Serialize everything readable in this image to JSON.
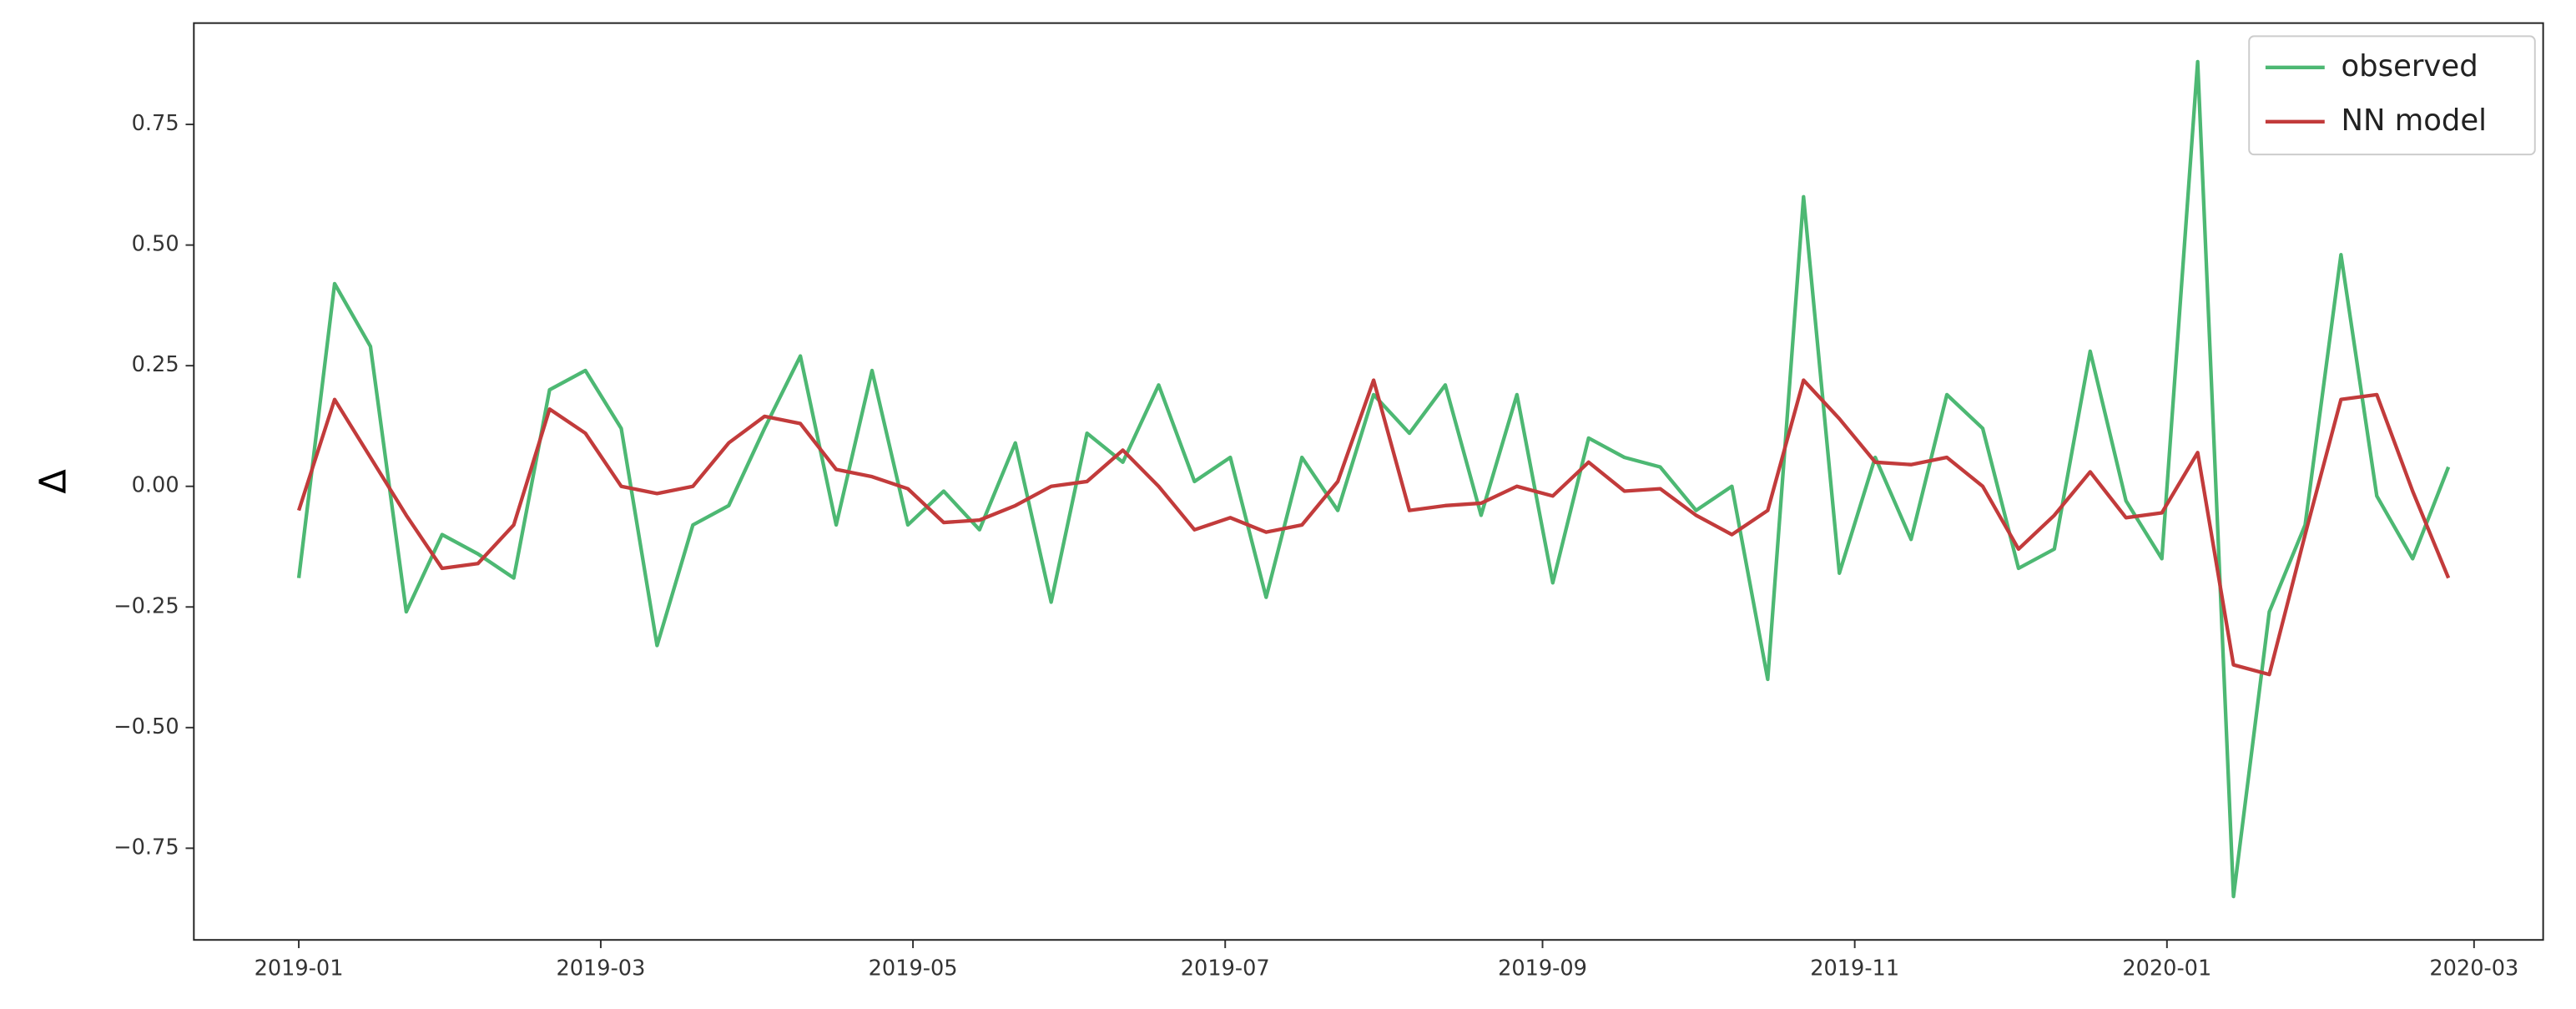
{
  "chart_data": {
    "type": "line",
    "ylabel": "Δ",
    "x": [
      0,
      7,
      14,
      21,
      28,
      35,
      42,
      49,
      56,
      63,
      70,
      77,
      84,
      91,
      98,
      105,
      112,
      119,
      126,
      133,
      140,
      147,
      154,
      161,
      168,
      175,
      182,
      189,
      196,
      203,
      210,
      217,
      224,
      231,
      238,
      245,
      252,
      259,
      266,
      273,
      280,
      287,
      294,
      301,
      308,
      315,
      322,
      329,
      336,
      343,
      350,
      357,
      364,
      371,
      378,
      385,
      392,
      399,
      406,
      413,
      420
    ],
    "series": [
      {
        "name": "observed",
        "color": "#4db873",
        "values": [
          -0.19,
          0.42,
          0.29,
          -0.26,
          -0.1,
          -0.14,
          -0.19,
          0.2,
          0.24,
          0.12,
          -0.33,
          -0.08,
          -0.04,
          0.12,
          0.27,
          -0.08,
          0.24,
          -0.08,
          -0.01,
          -0.09,
          0.09,
          -0.24,
          0.11,
          0.05,
          0.21,
          0.01,
          0.06,
          -0.23,
          0.06,
          -0.05,
          0.19,
          0.11,
          0.21,
          -0.06,
          0.19,
          -0.2,
          0.1,
          0.06,
          0.04,
          -0.05,
          0.0,
          -0.4,
          0.6,
          -0.18,
          0.06,
          -0.11,
          0.19,
          0.12,
          -0.17,
          -0.13,
          0.28,
          -0.03,
          -0.15,
          0.88,
          -0.85,
          -0.26,
          -0.08,
          0.48,
          -0.02,
          -0.15,
          0.04
        ]
      },
      {
        "name": "NN model",
        "color": "#c23b3b",
        "values": [
          -0.05,
          0.18,
          0.06,
          -0.06,
          -0.17,
          -0.16,
          -0.08,
          0.16,
          0.11,
          0.0,
          -0.015,
          0.0,
          0.09,
          0.145,
          0.13,
          0.035,
          0.02,
          -0.005,
          -0.075,
          -0.07,
          -0.04,
          0.0,
          0.01,
          0.075,
          0.0,
          -0.09,
          -0.065,
          -0.095,
          -0.08,
          0.01,
          0.22,
          -0.05,
          -0.04,
          -0.035,
          0.0,
          -0.02,
          0.05,
          -0.01,
          -0.005,
          -0.06,
          -0.1,
          -0.05,
          0.22,
          0.14,
          0.05,
          0.045,
          0.06,
          0.0,
          -0.13,
          -0.06,
          0.03,
          -0.065,
          -0.055,
          0.07,
          -0.37,
          -0.39,
          -0.1,
          0.18,
          0.19,
          -0.01,
          -0.19
        ]
      }
    ],
    "xlim": [
      -20.5,
      438.5
    ],
    "xticks": [
      {
        "value": 0,
        "label": "2019-01"
      },
      {
        "value": 59,
        "label": "2019-03"
      },
      {
        "value": 120,
        "label": "2019-05"
      },
      {
        "value": 181,
        "label": "2019-07"
      },
      {
        "value": 243,
        "label": "2019-09"
      },
      {
        "value": 304,
        "label": "2019-11"
      },
      {
        "value": 365,
        "label": "2020-01"
      },
      {
        "value": 425,
        "label": "2020-03"
      }
    ],
    "ylim": [
      -0.94,
      0.96
    ],
    "yticks": [
      {
        "value": -0.75,
        "label": "−0.75"
      },
      {
        "value": -0.5,
        "label": "−0.50"
      },
      {
        "value": -0.25,
        "label": "−0.25"
      },
      {
        "value": 0,
        "label": "0.00"
      },
      {
        "value": 0.25,
        "label": "0.25"
      },
      {
        "value": 0.5,
        "label": "0.50"
      },
      {
        "value": 0.75,
        "label": "0.75"
      }
    ],
    "legend": "upper right"
  }
}
